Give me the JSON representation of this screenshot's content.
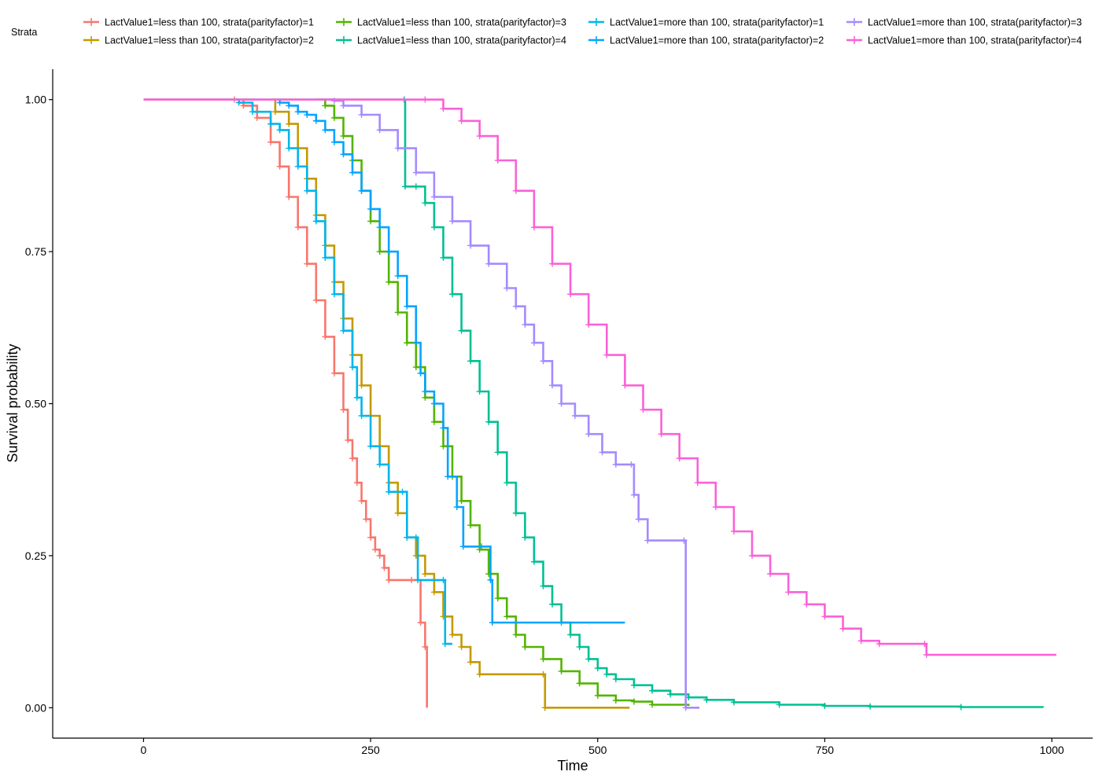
{
  "chart_data": {
    "type": "line",
    "title": "",
    "xlabel": "Time",
    "ylabel": "Survival probability",
    "xlim": [
      -100,
      1045
    ],
    "ylim": [
      -0.05,
      1.05
    ],
    "x_ticks": [
      0,
      250,
      500,
      750,
      1000
    ],
    "x_tick_labels": [
      "0",
      "250",
      "500",
      "750",
      "1000"
    ],
    "y_ticks": [
      0,
      0.25,
      0.5,
      0.75,
      1
    ],
    "y_tick_labels": [
      "0.00",
      "0.25",
      "0.50",
      "0.75",
      "1.00"
    ],
    "grid": false,
    "legend": {
      "title": "Strata",
      "position": "top"
    },
    "series": [
      {
        "name": "LactValue1=less than 100, strata(parityfactor)=1",
        "color": "#F8766D",
        "points": [
          [
            0,
            1
          ],
          [
            100,
            1
          ],
          [
            110,
            0.99
          ],
          [
            125,
            0.97
          ],
          [
            140,
            0.93
          ],
          [
            150,
            0.89
          ],
          [
            160,
            0.84
          ],
          [
            170,
            0.79
          ],
          [
            180,
            0.73
          ],
          [
            190,
            0.67
          ],
          [
            200,
            0.61
          ],
          [
            210,
            0.55
          ],
          [
            220,
            0.49
          ],
          [
            225,
            0.44
          ],
          [
            230,
            0.41
          ],
          [
            235,
            0.37
          ],
          [
            240,
            0.34
          ],
          [
            245,
            0.31
          ],
          [
            250,
            0.28
          ],
          [
            255,
            0.26
          ],
          [
            260,
            0.25
          ],
          [
            265,
            0.23
          ],
          [
            270,
            0.21
          ],
          [
            295,
            0.21
          ],
          [
            305,
            0.14
          ],
          [
            310,
            0.1
          ],
          [
            312,
            0.0
          ]
        ]
      },
      {
        "name": "LactValue1=less than 100, strata(parityfactor)=2",
        "color": "#C49A00",
        "points": [
          [
            143,
            1
          ],
          [
            145,
            0.98
          ],
          [
            160,
            0.96
          ],
          [
            170,
            0.92
          ],
          [
            180,
            0.87
          ],
          [
            190,
            0.81
          ],
          [
            200,
            0.76
          ],
          [
            210,
            0.7
          ],
          [
            220,
            0.64
          ],
          [
            230,
            0.58
          ],
          [
            240,
            0.53
          ],
          [
            250,
            0.48
          ],
          [
            260,
            0.43
          ],
          [
            270,
            0.37
          ],
          [
            280,
            0.32
          ],
          [
            290,
            0.28
          ],
          [
            300,
            0.25
          ],
          [
            310,
            0.22
          ],
          [
            320,
            0.19
          ],
          [
            330,
            0.15
          ],
          [
            340,
            0.12
          ],
          [
            350,
            0.1
          ],
          [
            360,
            0.075
          ],
          [
            370,
            0.055
          ],
          [
            440,
            0.055
          ],
          [
            442,
            0.0
          ],
          [
            535,
            0.0
          ]
        ]
      },
      {
        "name": "LactValue1=less than 100, strata(parityfactor)=3",
        "color": "#53B400",
        "points": [
          [
            190,
            1
          ],
          [
            200,
            0.99
          ],
          [
            210,
            0.97
          ],
          [
            220,
            0.94
          ],
          [
            230,
            0.9
          ],
          [
            240,
            0.85
          ],
          [
            250,
            0.8
          ],
          [
            260,
            0.75
          ],
          [
            270,
            0.7
          ],
          [
            280,
            0.65
          ],
          [
            290,
            0.6
          ],
          [
            300,
            0.56
          ],
          [
            310,
            0.51
          ],
          [
            320,
            0.47
          ],
          [
            330,
            0.43
          ],
          [
            340,
            0.38
          ],
          [
            350,
            0.34
          ],
          [
            360,
            0.3
          ],
          [
            370,
            0.26
          ],
          [
            380,
            0.22
          ],
          [
            390,
            0.18
          ],
          [
            400,
            0.15
          ],
          [
            410,
            0.12
          ],
          [
            420,
            0.1
          ],
          [
            440,
            0.08
          ],
          [
            460,
            0.06
          ],
          [
            480,
            0.04
          ],
          [
            500,
            0.02
          ],
          [
            520,
            0.012
          ],
          [
            540,
            0.01
          ],
          [
            560,
            0.005
          ],
          [
            600,
            0.003
          ]
        ]
      },
      {
        "name": "LactValue1=less than 100, strata(parityfactor)=4",
        "color": "#00C094",
        "points": [
          [
            0,
            1
          ],
          [
            287,
            1
          ],
          [
            288,
            0.857
          ],
          [
            300,
            0.857
          ],
          [
            310,
            0.83
          ],
          [
            320,
            0.79
          ],
          [
            330,
            0.74
          ],
          [
            340,
            0.68
          ],
          [
            350,
            0.62
          ],
          [
            360,
            0.57
          ],
          [
            370,
            0.52
          ],
          [
            380,
            0.47
          ],
          [
            390,
            0.42
          ],
          [
            400,
            0.37
          ],
          [
            410,
            0.32
          ],
          [
            420,
            0.28
          ],
          [
            430,
            0.24
          ],
          [
            440,
            0.2
          ],
          [
            450,
            0.17
          ],
          [
            460,
            0.14
          ],
          [
            470,
            0.12
          ],
          [
            480,
            0.1
          ],
          [
            490,
            0.08
          ],
          [
            500,
            0.065
          ],
          [
            510,
            0.055
          ],
          [
            520,
            0.047
          ],
          [
            540,
            0.037
          ],
          [
            560,
            0.028
          ],
          [
            580,
            0.022
          ],
          [
            600,
            0.017
          ],
          [
            620,
            0.013
          ],
          [
            650,
            0.009
          ],
          [
            700,
            0.005
          ],
          [
            750,
            0.003
          ],
          [
            800,
            0.002
          ],
          [
            900,
            0.001
          ],
          [
            990,
            0.0
          ]
        ]
      },
      {
        "name": "LactValue1=more than 100, strata(parityfactor)=1",
        "color": "#00B6EB",
        "points": [
          [
            100,
            1
          ],
          [
            105,
            0.995
          ],
          [
            120,
            0.98
          ],
          [
            140,
            0.96
          ],
          [
            150,
            0.95
          ],
          [
            160,
            0.92
          ],
          [
            170,
            0.89
          ],
          [
            180,
            0.85
          ],
          [
            190,
            0.8
          ],
          [
            200,
            0.74
          ],
          [
            210,
            0.68
          ],
          [
            220,
            0.62
          ],
          [
            230,
            0.56
          ],
          [
            235,
            0.51
          ],
          [
            240,
            0.48
          ],
          [
            250,
            0.43
          ],
          [
            260,
            0.4
          ],
          [
            270,
            0.355
          ],
          [
            285,
            0.355
          ],
          [
            290,
            0.28
          ],
          [
            300,
            0.28
          ],
          [
            302,
            0.21
          ],
          [
            330,
            0.21
          ],
          [
            332,
            0.105
          ],
          [
            340,
            0.105
          ]
        ]
      },
      {
        "name": "LactValue1=more than 100, strata(parityfactor)=2",
        "color": "#06A4FF",
        "points": [
          [
            148,
            1
          ],
          [
            150,
            0.995
          ],
          [
            160,
            0.99
          ],
          [
            170,
            0.98
          ],
          [
            180,
            0.975
          ],
          [
            190,
            0.965
          ],
          [
            200,
            0.95
          ],
          [
            210,
            0.93
          ],
          [
            220,
            0.91
          ],
          [
            230,
            0.88
          ],
          [
            240,
            0.85
          ],
          [
            250,
            0.82
          ],
          [
            260,
            0.79
          ],
          [
            270,
            0.75
          ],
          [
            280,
            0.71
          ],
          [
            290,
            0.66
          ],
          [
            300,
            0.6
          ],
          [
            305,
            0.55
          ],
          [
            310,
            0.52
          ],
          [
            320,
            0.5
          ],
          [
            330,
            0.46
          ],
          [
            335,
            0.38
          ],
          [
            345,
            0.33
          ],
          [
            352,
            0.265
          ],
          [
            372,
            0.265
          ],
          [
            382,
            0.21
          ],
          [
            384,
            0.14
          ],
          [
            530,
            0.14
          ]
        ]
      },
      {
        "name": "LactValue1=more than 100, strata(parityfactor)=3",
        "color": "#A58AFF",
        "points": [
          [
            195,
            1
          ],
          [
            210,
            0.998
          ],
          [
            220,
            0.99
          ],
          [
            240,
            0.975
          ],
          [
            260,
            0.95
          ],
          [
            280,
            0.92
          ],
          [
            300,
            0.88
          ],
          [
            320,
            0.84
          ],
          [
            340,
            0.8
          ],
          [
            360,
            0.76
          ],
          [
            380,
            0.73
          ],
          [
            400,
            0.69
          ],
          [
            410,
            0.66
          ],
          [
            420,
            0.63
          ],
          [
            430,
            0.6
          ],
          [
            440,
            0.57
          ],
          [
            450,
            0.53
          ],
          [
            460,
            0.5
          ],
          [
            475,
            0.48
          ],
          [
            490,
            0.45
          ],
          [
            505,
            0.42
          ],
          [
            520,
            0.4
          ],
          [
            537,
            0.4
          ],
          [
            540,
            0.35
          ],
          [
            545,
            0.31
          ],
          [
            555,
            0.275
          ],
          [
            595,
            0.275
          ],
          [
            597,
            0.0
          ],
          [
            612,
            0.0
          ]
        ]
      },
      {
        "name": "LactValue1=more than 100, strata(parityfactor)=4",
        "color": "#FB61D7",
        "points": [
          [
            0,
            1
          ],
          [
            310,
            1
          ],
          [
            330,
            0.985
          ],
          [
            350,
            0.965
          ],
          [
            370,
            0.94
          ],
          [
            390,
            0.9
          ],
          [
            410,
            0.85
          ],
          [
            430,
            0.79
          ],
          [
            450,
            0.73
          ],
          [
            470,
            0.68
          ],
          [
            490,
            0.63
          ],
          [
            510,
            0.58
          ],
          [
            530,
            0.53
          ],
          [
            550,
            0.49
          ],
          [
            570,
            0.45
          ],
          [
            590,
            0.41
          ],
          [
            610,
            0.37
          ],
          [
            630,
            0.33
          ],
          [
            650,
            0.29
          ],
          [
            670,
            0.25
          ],
          [
            690,
            0.22
          ],
          [
            710,
            0.19
          ],
          [
            730,
            0.17
          ],
          [
            750,
            0.15
          ],
          [
            770,
            0.13
          ],
          [
            790,
            0.11
          ],
          [
            810,
            0.105
          ],
          [
            860,
            0.105
          ],
          [
            862,
            0.087
          ],
          [
            1005,
            0.087
          ]
        ]
      }
    ]
  }
}
